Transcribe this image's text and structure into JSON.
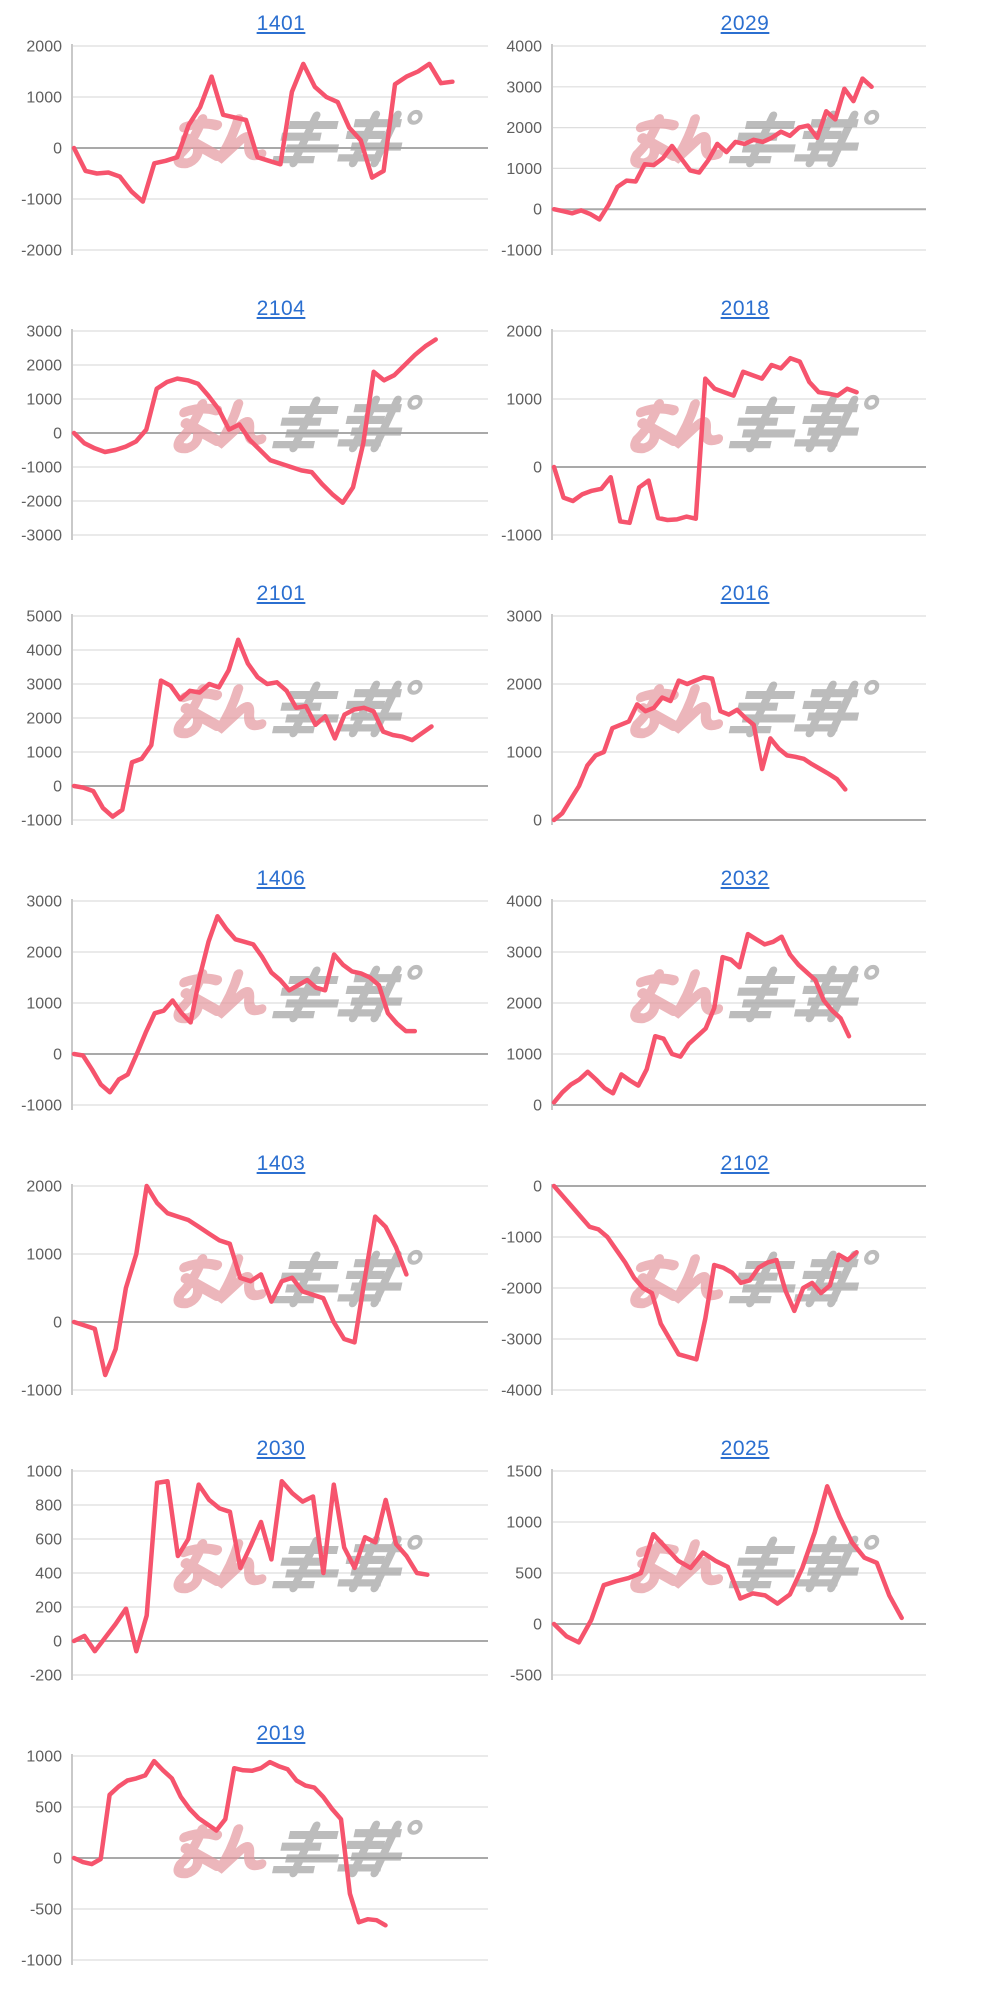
{
  "page": {
    "background": "#ffffff"
  },
  "watermark": {
    "pink_text": "みん",
    "gray_text": "ぱち",
    "pink_color": "#e59aa1",
    "gray_color": "#a3a3a3"
  },
  "colors": {
    "line": "#f6546d",
    "grid": "#dedede",
    "zero_line": "#a9a9a9",
    "axis_line": "#c9c9c9",
    "tick_text": "#5f5f5f",
    "title_link": "#2b6fd0"
  },
  "chart_data": [
    {
      "type": "line",
      "title": "1401",
      "yticks": [
        2000,
        1000,
        0,
        -1000,
        -2000
      ],
      "x_end": 0.91,
      "values": [
        0,
        -450,
        -500,
        -480,
        -560,
        -850,
        -1050,
        -300,
        -250,
        -180,
        450,
        800,
        1400,
        650,
        600,
        550,
        -180,
        -250,
        -320,
        1100,
        1650,
        1200,
        1000,
        900,
        400,
        150,
        -580,
        -450,
        1250,
        1400,
        1500,
        1650,
        1270,
        1300
      ]
    },
    {
      "type": "line",
      "title": "2029",
      "yticks": [
        4000,
        3000,
        2000,
        1000,
        0,
        -1000
      ],
      "x_end": 0.85,
      "values": [
        0,
        -50,
        -100,
        -30,
        -120,
        -250,
        100,
        550,
        700,
        680,
        1100,
        1080,
        1250,
        1550,
        1250,
        950,
        900,
        1200,
        1600,
        1400,
        1650,
        1600,
        1700,
        1650,
        1750,
        1900,
        1800,
        2000,
        2050,
        1750,
        2400,
        2200,
        2950,
        2650,
        3200,
        3000
      ]
    },
    {
      "type": "line",
      "title": "2104",
      "yticks": [
        3000,
        2000,
        1000,
        0,
        -1000,
        -2000,
        -3000
      ],
      "x_end": 0.87,
      "values": [
        0,
        -300,
        -450,
        -560,
        -500,
        -400,
        -250,
        100,
        1300,
        1500,
        1600,
        1550,
        1450,
        1100,
        700,
        100,
        250,
        -200,
        -500,
        -800,
        -900,
        -1000,
        -1100,
        -1150,
        -1500,
        -1800,
        -2050,
        -1600,
        -300,
        1800,
        1550,
        1700,
        2000,
        2300,
        2550,
        2750
      ]
    },
    {
      "type": "line",
      "title": "2018",
      "yticks": [
        2000,
        1000,
        0,
        -1000
      ],
      "x_end": 0.81,
      "values": [
        0,
        -450,
        -500,
        -400,
        -350,
        -320,
        -150,
        -800,
        -820,
        -300,
        -200,
        -750,
        -780,
        -770,
        -730,
        -760,
        1300,
        1150,
        1100,
        1050,
        1400,
        1350,
        1300,
        1500,
        1450,
        1600,
        1550,
        1250,
        1100,
        1080,
        1050,
        1150,
        1100
      ]
    },
    {
      "type": "line",
      "title": "2101",
      "yticks": [
        5000,
        4000,
        3000,
        2000,
        1000,
        0,
        -1000
      ],
      "x_end": 0.86,
      "values": [
        0,
        -50,
        -150,
        -650,
        -900,
        -700,
        700,
        800,
        1200,
        3100,
        2950,
        2550,
        2800,
        2750,
        3000,
        2900,
        3400,
        4300,
        3600,
        3200,
        3000,
        3050,
        2800,
        2300,
        2350,
        1800,
        2050,
        1400,
        2100,
        2250,
        2300,
        2200,
        1600,
        1500,
        1450,
        1350,
        1550,
        1750
      ]
    },
    {
      "type": "line",
      "title": "2016",
      "yticks": [
        3000,
        2000,
        1000,
        0
      ],
      "x_end": 0.78,
      "values": [
        0,
        100,
        300,
        500,
        800,
        950,
        1000,
        1350,
        1400,
        1450,
        1700,
        1600,
        1650,
        1800,
        1750,
        2050,
        2000,
        2050,
        2100,
        2080,
        1600,
        1550,
        1620,
        1500,
        1400,
        750,
        1200,
        1050,
        950,
        930,
        900,
        820,
        750,
        680,
        600,
        450
      ]
    },
    {
      "type": "line",
      "title": "1406",
      "yticks": [
        3000,
        2000,
        1000,
        0,
        -1000
      ],
      "x_end": 0.82,
      "values": [
        0,
        -30,
        -300,
        -600,
        -750,
        -500,
        -400,
        0,
        420,
        800,
        850,
        1050,
        800,
        620,
        1500,
        2200,
        2700,
        2450,
        2250,
        2200,
        2150,
        1900,
        1600,
        1450,
        1250,
        1350,
        1450,
        1300,
        1250,
        1950,
        1750,
        1620,
        1580,
        1500,
        1350,
        800,
        600,
        450,
        450
      ]
    },
    {
      "type": "line",
      "title": "2032",
      "yticks": [
        4000,
        3000,
        2000,
        1000,
        0
      ],
      "x_end": 0.79,
      "values": [
        50,
        250,
        400,
        500,
        650,
        500,
        330,
        230,
        600,
        480,
        380,
        700,
        1350,
        1300,
        1000,
        950,
        1200,
        1350,
        1500,
        1900,
        2900,
        2850,
        2700,
        3350,
        3250,
        3150,
        3200,
        3300,
        2950,
        2750,
        2600,
        2450,
        2050,
        1850,
        1700,
        1350
      ]
    },
    {
      "type": "line",
      "title": "1403",
      "yticks": [
        2000,
        1000,
        0,
        -1000
      ],
      "x_end": 0.8,
      "values": [
        0,
        -50,
        -100,
        -780,
        -400,
        500,
        1000,
        2000,
        1750,
        1600,
        1550,
        1500,
        1400,
        1300,
        1200,
        1150,
        650,
        600,
        700,
        300,
        600,
        650,
        450,
        400,
        350,
        0,
        -250,
        -300,
        650,
        1550,
        1400,
        1100,
        700
      ]
    },
    {
      "type": "line",
      "title": "2102",
      "yticks": [
        0,
        -1000,
        -2000,
        -3000,
        -4000
      ],
      "x_end": 0.81,
      "values": [
        0,
        -200,
        -400,
        -600,
        -800,
        -850,
        -1000,
        -1250,
        -1500,
        -1800,
        -2000,
        -2100,
        -2700,
        -3000,
        -3300,
        -3350,
        -3400,
        -2600,
        -1550,
        -1600,
        -1700,
        -1900,
        -1850,
        -1600,
        -1500,
        -1450,
        -2050,
        -2450,
        -2000,
        -1900,
        -2100,
        -1950,
        -1350,
        -1450,
        -1300
      ]
    },
    {
      "type": "line",
      "title": "2030",
      "yticks": [
        1000,
        800,
        600,
        400,
        200,
        0,
        -200
      ],
      "x_end": 0.85,
      "values": [
        0,
        30,
        -60,
        20,
        100,
        190,
        -60,
        150,
        930,
        940,
        500,
        600,
        920,
        830,
        780,
        760,
        430,
        560,
        700,
        480,
        940,
        870,
        820,
        850,
        400,
        920,
        550,
        430,
        610,
        580,
        830,
        570,
        500,
        400,
        390
      ]
    },
    {
      "type": "line",
      "title": "2025",
      "yticks": [
        1500,
        1000,
        500,
        0,
        -500
      ],
      "x_end": 0.93,
      "values": [
        0,
        -120,
        -180,
        40,
        380,
        420,
        450,
        500,
        880,
        750,
        620,
        550,
        700,
        620,
        560,
        250,
        300,
        280,
        200,
        290,
        550,
        900,
        1350,
        1050,
        800,
        650,
        600,
        280,
        60
      ]
    },
    {
      "type": "line",
      "title": "2019",
      "yticks": [
        1000,
        500,
        0,
        -500,
        -1000
      ],
      "x_end": 0.75,
      "values": [
        0,
        -40,
        -60,
        -10,
        620,
        700,
        760,
        780,
        810,
        950,
        860,
        780,
        600,
        480,
        390,
        330,
        270,
        380,
        880,
        860,
        855,
        880,
        940,
        900,
        870,
        760,
        710,
        690,
        600,
        480,
        380,
        -350,
        -630,
        -600,
        -610,
        -660
      ]
    }
  ]
}
